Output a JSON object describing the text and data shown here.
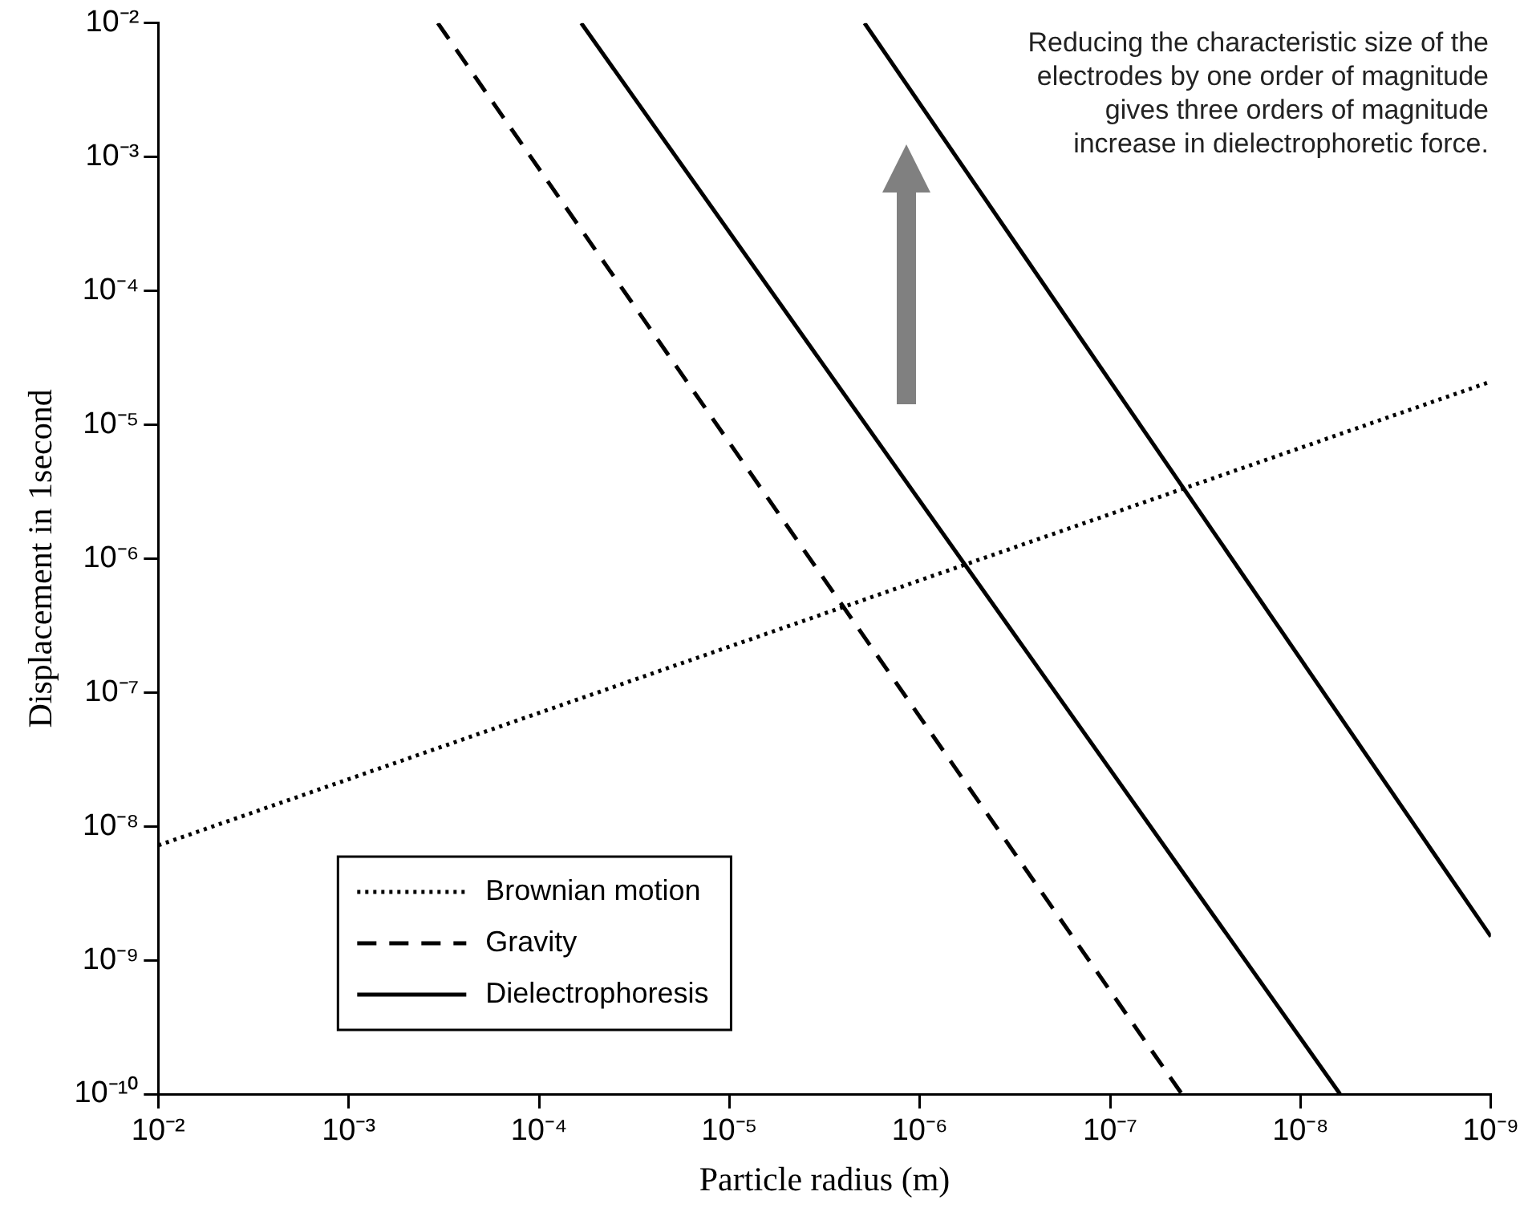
{
  "chart_data": {
    "type": "line",
    "xlabel": "Particle radius (m)",
    "ylabel": "Displacement in 1second",
    "log": "xy",
    "xlim": [
      0.01,
      1e-09
    ],
    "ylim": [
      1e-10,
      0.01
    ],
    "xticks": [
      {
        "value": 0.01,
        "label": "10⁻²"
      },
      {
        "value": 0.001,
        "label": "10⁻³"
      },
      {
        "value": 0.0001,
        "label": "10⁻⁴"
      },
      {
        "value": 1e-05,
        "label": "10⁻⁵"
      },
      {
        "value": 1e-06,
        "label": "10⁻⁶"
      },
      {
        "value": 1e-07,
        "label": "10⁻⁷"
      },
      {
        "value": 1e-08,
        "label": "10⁻⁸"
      },
      {
        "value": 1e-09,
        "label": "10⁻⁹"
      }
    ],
    "yticks": [
      {
        "value": 1e-10,
        "label": "10⁻¹⁰"
      },
      {
        "value": 1e-09,
        "label": "10⁻⁹"
      },
      {
        "value": 1e-08,
        "label": "10⁻⁸"
      },
      {
        "value": 1e-07,
        "label": "10⁻⁷"
      },
      {
        "value": 1e-06,
        "label": "10⁻⁶"
      },
      {
        "value": 1e-05,
        "label": "10⁻⁵"
      },
      {
        "value": 0.0001,
        "label": "10⁻⁴"
      },
      {
        "value": 0.001,
        "label": "10⁻³"
      },
      {
        "value": 0.01,
        "label": "10⁻²"
      }
    ],
    "grid": false,
    "legend": "bottom left",
    "marker": "none",
    "series": [
      {
        "name": "Brownian motion",
        "color": "#000000",
        "line_style": "dotted",
        "x": [
          0.01,
          1e-09
        ],
        "values": [
          7.2e-09,
          2.1e-05
        ]
      },
      {
        "name": "Gravity",
        "color": "#000000",
        "line_style": "dashed",
        "x": [
          0.00034,
          4.2e-08
        ],
        "values": [
          0.01,
          1e-10
        ]
      },
      {
        "name": "Dielectrophoresis",
        "color": "#000000",
        "line_style": "solid",
        "x": [
          6e-05,
          6.2e-09
        ],
        "values": [
          0.01,
          1e-10
        ]
      },
      {
        "color": "#000000",
        "line_style": "solid",
        "x": [
          1.95e-06,
          1e-09
        ],
        "values": [
          0.01,
          1.5e-09
        ]
      }
    ],
    "annotations": [
      "Reducing the characteristic size of the electrodes by one order of magnitude gives three orders of magnitude increase in dielectrophoretic force."
    ]
  }
}
